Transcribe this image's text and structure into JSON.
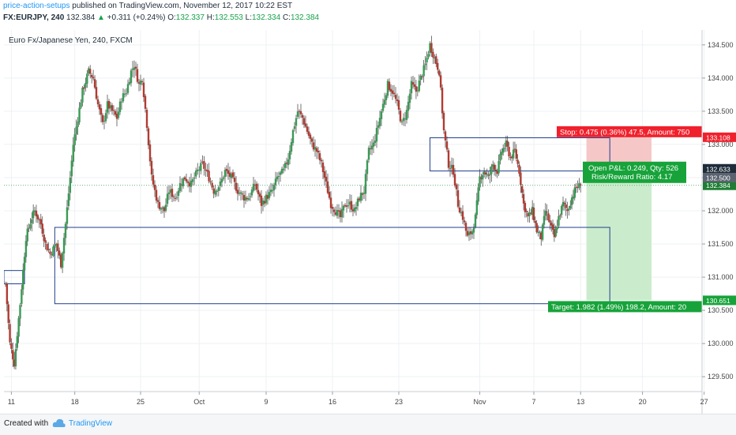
{
  "header": {
    "author": "price-action-setups",
    "published": "published on TradingView.com, November 12, 2017 10:22 EST",
    "symbol_line": {
      "symbol": "FX:EURJPY, 240",
      "last": "132.384",
      "change": "+0.311 (+0.24%)",
      "o_label": "O:",
      "o": "132.337",
      "h_label": "H:",
      "h": "132.553",
      "l_label": "L:",
      "l": "132.334",
      "c_label": "C:",
      "c": "132.384"
    }
  },
  "chart_title": "Euro Fx/Japanese Yen, 240, FXCM",
  "footer": {
    "created": "Created with",
    "brand": "TradingView"
  },
  "colors": {
    "up": "#3a9a55",
    "down": "#b23a30",
    "grid": "#eef0f3",
    "box": "#20408c",
    "stop_fill": "#f6c7c7",
    "target_fill": "#cbeccc",
    "stop_tag": "#f0212c",
    "target_tag": "#17a33a"
  },
  "chart_data": {
    "type": "candlestick",
    "ylim": [
      129.3,
      134.7
    ],
    "y_ticks": [
      129.5,
      130.0,
      130.5,
      131.0,
      131.5,
      132.0,
      132.5,
      133.0,
      133.5,
      134.0,
      134.5
    ],
    "y_tick_labels": [
      "129.500",
      "130.000",
      "130.500",
      "131.000",
      "131.500",
      "132.000",
      "132.500",
      "133.000",
      "133.500",
      "134.000",
      "134.500"
    ],
    "x_ticks": [
      {
        "label": "11",
        "i": 4
      },
      {
        "label": "18",
        "i": 46
      },
      {
        "label": "25",
        "i": 88
      },
      {
        "label": "Oct",
        "i": 125
      },
      {
        "label": "9",
        "i": 167
      },
      {
        "label": "16",
        "i": 209
      },
      {
        "label": "23",
        "i": 251
      },
      {
        "label": "Nov",
        "i": 303
      },
      {
        "label": "7",
        "i": 340
      },
      {
        "label": "13",
        "i": 372
      },
      {
        "label": "20",
        "i": 414
      },
      {
        "label": "27",
        "i": 456
      }
    ],
    "x_slots": 466,
    "x_at": [
      [
        0,
        0
      ],
      [
        20,
        13
      ],
      [
        40,
        34
      ],
      [
        60,
        38
      ],
      [
        80,
        51
      ],
      [
        100,
        70
      ],
      [
        120,
        87
      ],
      [
        140,
        97
      ],
      [
        160,
        109
      ],
      [
        180,
        123
      ],
      [
        200,
        141
      ],
      [
        220,
        155
      ],
      [
        240,
        164
      ],
      [
        260,
        184
      ],
      [
        280,
        192
      ],
      [
        300,
        215
      ],
      [
        320,
        234
      ],
      [
        340,
        246
      ],
      [
        360,
        260
      ],
      [
        375,
        274
      ]
    ],
    "close": [
      [
        0,
        130.9
      ],
      [
        3,
        130.0
      ],
      [
        6,
        129.7
      ],
      [
        10,
        130.6
      ],
      [
        14,
        131.6
      ],
      [
        18,
        131.9
      ],
      [
        20,
        132.0
      ],
      [
        24,
        131.8
      ],
      [
        27,
        131.5
      ],
      [
        30,
        131.35
      ],
      [
        34,
        131.5
      ],
      [
        37,
        131.2
      ],
      [
        40,
        131.8
      ],
      [
        43,
        132.5
      ],
      [
        45,
        133.0
      ],
      [
        48,
        133.4
      ],
      [
        51,
        133.8
      ],
      [
        55,
        134.1
      ],
      [
        58,
        134.0
      ],
      [
        61,
        133.6
      ],
      [
        64,
        133.3
      ],
      [
        67,
        133.6
      ],
      [
        70,
        133.5
      ],
      [
        73,
        133.4
      ],
      [
        76,
        133.7
      ],
      [
        79,
        133.8
      ],
      [
        82,
        134.1
      ],
      [
        84,
        134.2
      ],
      [
        87,
        133.9
      ],
      [
        89,
        134.0
      ],
      [
        92,
        133.3
      ],
      [
        95,
        132.5
      ],
      [
        99,
        132.1
      ],
      [
        103,
        132.0
      ],
      [
        106,
        132.3
      ],
      [
        110,
        132.2
      ],
      [
        113,
        132.4
      ],
      [
        116,
        132.5
      ],
      [
        120,
        132.4
      ],
      [
        124,
        132.6
      ],
      [
        127,
        132.7
      ],
      [
        131,
        132.5
      ],
      [
        134,
        132.3
      ],
      [
        138,
        132.4
      ],
      [
        141,
        132.6
      ],
      [
        145,
        132.5
      ],
      [
        149,
        132.3
      ],
      [
        153,
        132.2
      ],
      [
        156,
        132.2
      ],
      [
        160,
        132.4
      ],
      [
        164,
        132.1
      ],
      [
        167,
        132.2
      ],
      [
        171,
        132.3
      ],
      [
        174,
        132.5
      ],
      [
        178,
        132.6
      ],
      [
        181,
        132.8
      ],
      [
        184,
        133.2
      ],
      [
        187,
        133.5
      ],
      [
        190,
        133.4
      ],
      [
        193,
        133.2
      ],
      [
        196,
        133.0
      ],
      [
        199,
        132.9
      ],
      [
        202,
        132.7
      ],
      [
        205,
        132.4
      ],
      [
        208,
        132.1
      ],
      [
        211,
        132.0
      ],
      [
        214,
        131.9
      ],
      [
        217,
        132.1
      ],
      [
        220,
        132.1
      ],
      [
        223,
        132.0
      ],
      [
        226,
        132.2
      ],
      [
        229,
        132.3
      ],
      [
        232,
        132.9
      ],
      [
        235,
        133.0
      ],
      [
        238,
        133.3
      ],
      [
        241,
        133.6
      ],
      [
        244,
        133.9
      ],
      [
        247,
        133.8
      ],
      [
        250,
        133.6
      ],
      [
        253,
        133.3
      ],
      [
        256,
        133.5
      ],
      [
        259,
        133.9
      ],
      [
        262,
        133.8
      ],
      [
        265,
        134.0
      ],
      [
        268,
        134.2
      ],
      [
        271,
        134.5
      ],
      [
        274,
        134.3
      ],
      [
        277,
        134.1
      ],
      [
        280,
        133.2
      ],
      [
        283,
        132.7
      ],
      [
        286,
        132.6
      ],
      [
        289,
        132.1
      ],
      [
        292,
        131.9
      ],
      [
        295,
        131.6
      ],
      [
        298,
        131.7
      ],
      [
        300,
        131.9
      ],
      [
        303,
        132.5
      ],
      [
        306,
        132.6
      ],
      [
        309,
        132.5
      ],
      [
        312,
        132.7
      ],
      [
        315,
        132.6
      ],
      [
        318,
        132.9
      ],
      [
        321,
        133.0
      ],
      [
        324,
        132.8
      ],
      [
        327,
        132.9
      ],
      [
        330,
        132.6
      ],
      [
        333,
        132.1
      ],
      [
        336,
        131.9
      ],
      [
        339,
        132.0
      ],
      [
        342,
        131.7
      ],
      [
        345,
        131.6
      ],
      [
        348,
        132.0
      ],
      [
        351,
        131.8
      ],
      [
        354,
        131.6
      ],
      [
        357,
        131.9
      ],
      [
        360,
        132.1
      ],
      [
        363,
        132.0
      ],
      [
        366,
        132.2
      ],
      [
        369,
        132.35
      ],
      [
        372,
        132.38
      ]
    ],
    "series_tags": [
      {
        "name": "last",
        "price": 132.384,
        "label": "132.384",
        "color": "#1e7e34"
      },
      {
        "name": "high",
        "price": 132.633,
        "label": "132.633",
        "color": "#1f2c3a"
      },
      {
        "name": "dim",
        "price": 132.5,
        "label": "132.500",
        "color": "#5b6470"
      },
      {
        "name": "stop",
        "price": 133.108,
        "label": "133.108",
        "color": "#f0212c"
      },
      {
        "name": "target",
        "price": 130.651,
        "label": "130.651",
        "color": "#17a33a"
      }
    ],
    "position": {
      "entry": 132.633,
      "stop": 133.108,
      "target": 130.651,
      "i_start": 376,
      "i_end": 420,
      "stop_label": "Stop: 0.475 (0.36%) 47.5, Amount: 750",
      "target_label": "Target: 1.982 (1.49%) 198.2, Amount: 20",
      "pl_label": "Open P&L: 0.249, Qty: 526",
      "rr_label": "Risk/Reward Ratio: 4.17"
    },
    "boxes": [
      {
        "i0": -2,
        "i1": 13,
        "p_top": 131.1,
        "p_bot": 130.9
      },
      {
        "i0": 33,
        "i1": 392,
        "p_top": 131.75,
        "p_bot": 130.6
      },
      {
        "i0": 271,
        "i1": 392,
        "p_top": 133.1,
        "p_bot": 132.6
      }
    ]
  }
}
